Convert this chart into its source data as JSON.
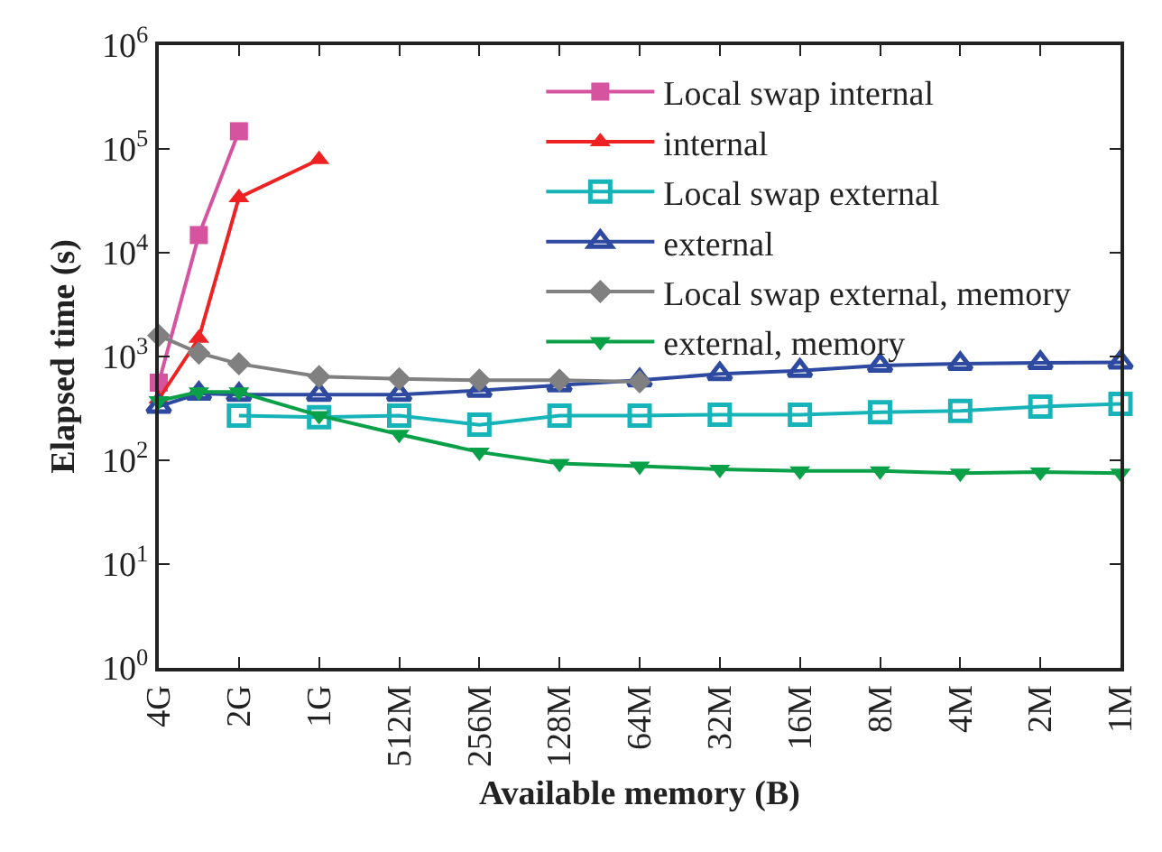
{
  "chart_data": {
    "type": "line",
    "xlabel": "Available memory (B)",
    "ylabel": "Elapsed time (s)",
    "log": "y",
    "categories": [
      "4G",
      null,
      "2G",
      null,
      "1G",
      null,
      "512M",
      null,
      "256M",
      null,
      "128M",
      null,
      "64M",
      null,
      "32M",
      null,
      "16M",
      null,
      "8M",
      null,
      "4M",
      null,
      "2M",
      null,
      "1M"
    ],
    "ylim": [
      1,
      1000000
    ],
    "yticks": [
      {
        "value": 1,
        "label": "10$^{0}$"
      },
      {
        "value": 10,
        "label": "10$^{1}$"
      },
      {
        "value": 100,
        "label": "10$^{2}$"
      },
      {
        "value": 1000,
        "label": "10$^{3}$"
      },
      {
        "value": 10000,
        "label": "10$^{4}$"
      },
      {
        "value": 100000,
        "label": "10$^{5}$"
      },
      {
        "value": 1000000,
        "label": "10$^{6}$"
      }
    ],
    "grid": false,
    "legend": "top right",
    "line_style": "solid",
    "series": [
      {
        "name": "Local swap internal",
        "color": "#d6549f",
        "marker": "square",
        "values": [
          560,
          14800,
          148000,
          null,
          null,
          null,
          null,
          null,
          null,
          null,
          null,
          null,
          null,
          null,
          null,
          null,
          null,
          null,
          null,
          null,
          null,
          null,
          null,
          null,
          null
        ]
      },
      {
        "name": "internal",
        "color": "#ee2222",
        "marker": "triangle",
        "values": [
          390,
          1500,
          34000,
          null,
          79000,
          null,
          null,
          null,
          null,
          null,
          null,
          null,
          null,
          null,
          null,
          null,
          null,
          null,
          null,
          null,
          null,
          null,
          null,
          null,
          null
        ]
      },
      {
        "name": "Local swap external",
        "color": "#16b3b8",
        "marker": "square-open",
        "values": [
          null,
          null,
          270,
          null,
          260,
          null,
          270,
          null,
          220,
          null,
          270,
          null,
          270,
          null,
          275,
          null,
          275,
          null,
          290,
          null,
          300,
          null,
          330,
          null,
          350
        ]
      },
      {
        "name": "external",
        "color": "#2e4aa0",
        "marker": "triangle-open",
        "values": [
          330,
          440,
          430,
          null,
          430,
          null,
          430,
          null,
          470,
          null,
          530,
          null,
          590,
          null,
          680,
          null,
          730,
          null,
          820,
          null,
          850,
          null,
          870,
          null,
          880
        ]
      },
      {
        "name": "Local swap external, memory",
        "color": "#808080",
        "marker": "diamond",
        "values": [
          1590,
          1080,
          850,
          null,
          640,
          null,
          610,
          null,
          590,
          null,
          590,
          null,
          570,
          null,
          null,
          null,
          null,
          null,
          null,
          null,
          null,
          null,
          null,
          null,
          null
        ]
      },
      {
        "name": "external, memory",
        "color": "#0aa048",
        "marker": "triangle-down",
        "values": [
          375,
          455,
          455,
          null,
          270,
          null,
          178,
          null,
          120,
          null,
          93,
          null,
          88,
          null,
          82,
          null,
          79,
          null,
          79,
          null,
          75,
          null,
          77,
          null,
          75
        ]
      }
    ]
  }
}
